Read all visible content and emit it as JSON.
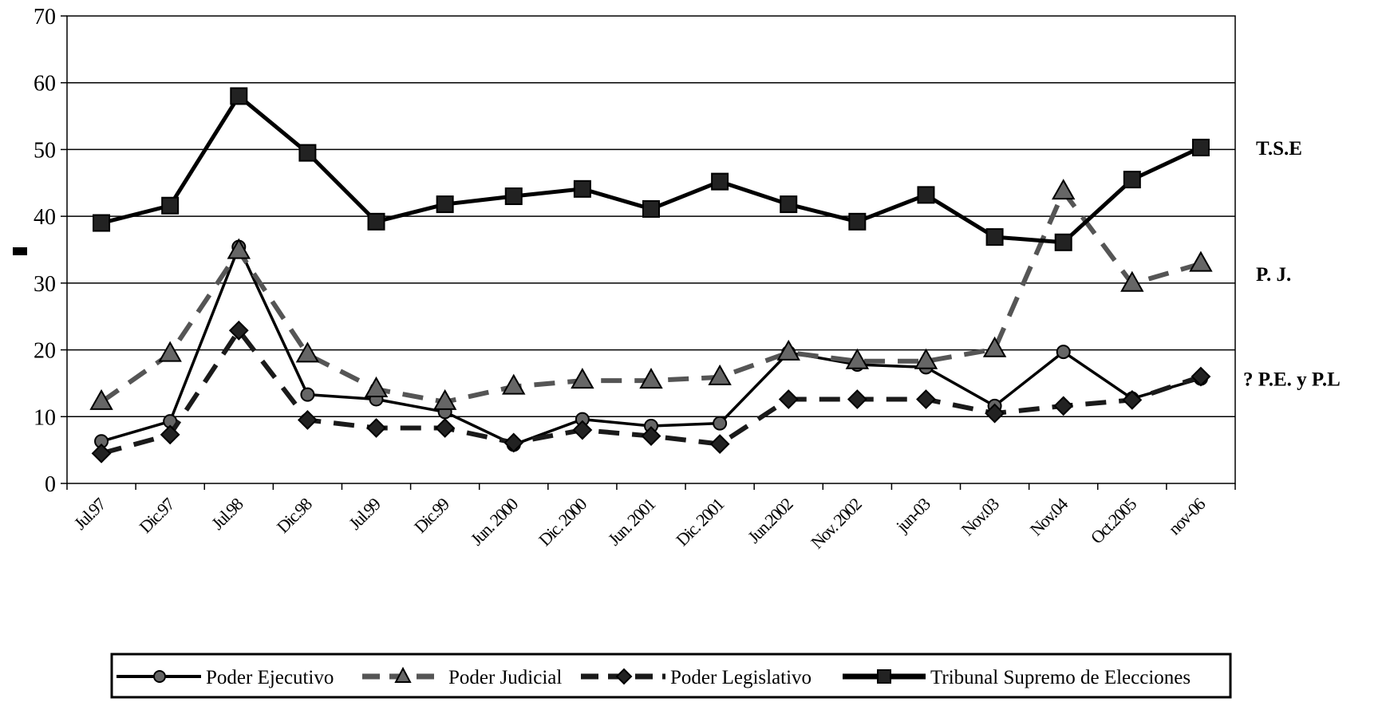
{
  "chart_data": {
    "type": "line",
    "title": "",
    "xlabel": "",
    "ylabel": "",
    "ylim": [
      0,
      70
    ],
    "yticks": [
      "0",
      "10",
      "20",
      "30",
      "40",
      "50",
      "60",
      "70"
    ],
    "grid": "horizontal",
    "legend_position": "bottom",
    "x_tick_labels": [
      "Jul.97",
      "Dic.97",
      "Jul.98",
      "Dic.98",
      "Jul.99",
      "Dic.99",
      "Jun. 2000",
      "Dic. 2000",
      "Jun. 2001",
      "Dic. 2001",
      "Jun.2002",
      "Nov. 2002",
      "jun-03",
      "Nov.03",
      "Nov.04",
      "Oct.2005",
      "nov-06"
    ],
    "series": [
      {
        "name": "Poder Ejecutivo",
        "color": "#000000",
        "marker": "circle",
        "style": "solid",
        "values": [
          6.3,
          9.3,
          35.4,
          13.3,
          12.6,
          10.7,
          5.8,
          9.6,
          8.6,
          9.0,
          19.6,
          17.8,
          17.4,
          11.6,
          19.7,
          12.7,
          15.7
        ]
      },
      {
        "name": "Poder Judicial",
        "color": "#555555",
        "marker": "triangle",
        "style": "dashed",
        "values": [
          12.2,
          19.4,
          34.8,
          19.3,
          14.1,
          12.2,
          14.5,
          15.4,
          15.4,
          15.9,
          19.6,
          18.3,
          18.3,
          20.1,
          43.7,
          29.9,
          32.9
        ]
      },
      {
        "name": "Poder Legislativo",
        "color": "#1a1a1a",
        "marker": "diamond",
        "style": "dashed",
        "values": [
          4.5,
          7.3,
          22.9,
          9.5,
          8.3,
          8.3,
          6.1,
          8.0,
          7.1,
          5.9,
          12.6,
          12.6,
          12.6,
          10.5,
          11.6,
          12.5,
          16.0
        ]
      },
      {
        "name": "Tribunal Supremo de Elecciones",
        "color": "#000000",
        "marker": "square",
        "style": "solid",
        "values": [
          39.0,
          41.6,
          58.0,
          49.5,
          39.2,
          41.8,
          43.0,
          44.1,
          41.1,
          45.2,
          41.8,
          39.2,
          43.2,
          36.9,
          36.1,
          45.5,
          50.3
        ]
      }
    ],
    "right_labels": [
      {
        "text": "T.S.E",
        "value": 50.3
      },
      {
        "text": "P. J.",
        "value": 31.4
      },
      {
        "text": "?  P.E. y P.L",
        "value": 15.7
      }
    ]
  }
}
